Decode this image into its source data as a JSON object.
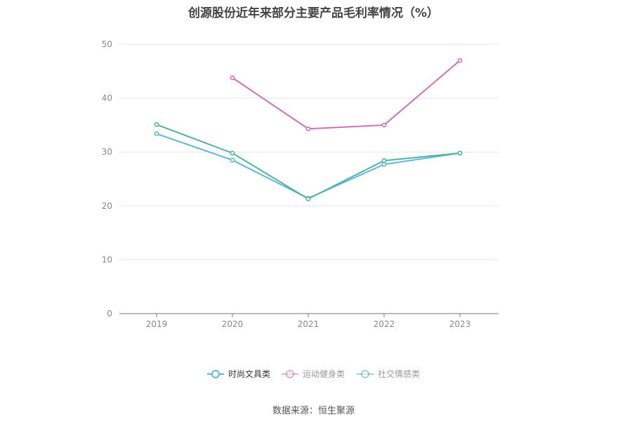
{
  "chart_data": {
    "type": "line",
    "title": "创源股份近年来部分主要产品毛利率情况（%）",
    "categories": [
      "2019",
      "2020",
      "2021",
      "2022",
      "2023"
    ],
    "ylim": [
      0,
      50
    ],
    "yticks": [
      0,
      10,
      20,
      30,
      40,
      50
    ],
    "grid": true,
    "legend_position": "bottom",
    "series": [
      {
        "name": "时尚文具类",
        "color": "#5ab9e3",
        "values": [
          33.4,
          28.5,
          21.4,
          27.7,
          29.8
        ]
      },
      {
        "name": "运动健身类",
        "color": "#d46fb5",
        "values": [
          null,
          43.8,
          34.3,
          35.0,
          47.0
        ]
      },
      {
        "name": "社交情感类",
        "color": "#4db69a",
        "values": [
          35.1,
          29.8,
          21.3,
          28.4,
          29.8
        ]
      }
    ]
  },
  "source": "数据来源：恒生聚源"
}
